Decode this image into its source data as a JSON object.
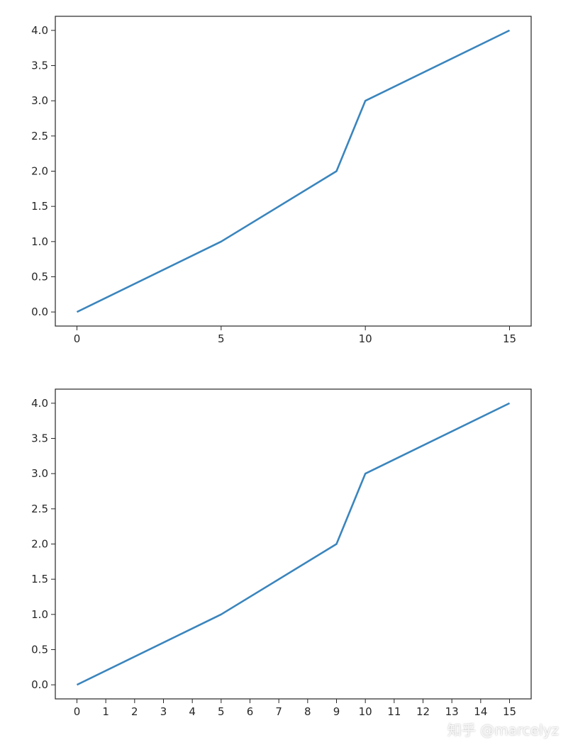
{
  "chart_data": [
    {
      "type": "line",
      "x": [
        0,
        5,
        9,
        10,
        15
      ],
      "series": [
        {
          "values": [
            0,
            1,
            2,
            3,
            4
          ],
          "color": "#3a85bd"
        }
      ],
      "xlim": [
        -0.75,
        15.75
      ],
      "ylim": [
        -0.2,
        4.2
      ],
      "xticks": [
        "0",
        "5",
        "10",
        "15"
      ],
      "xtick_values": [
        0,
        5,
        10,
        15
      ],
      "yticks": [
        "0.0",
        "0.5",
        "1.0",
        "1.5",
        "2.0",
        "2.5",
        "3.0",
        "3.5",
        "4.0"
      ],
      "ytick_values": [
        0,
        0.5,
        1,
        1.5,
        2,
        2.5,
        3,
        3.5,
        4
      ],
      "grid": false,
      "title": "",
      "xlabel": "",
      "ylabel": ""
    },
    {
      "type": "line",
      "x": [
        0,
        5,
        9,
        10,
        15
      ],
      "series": [
        {
          "values": [
            0,
            1,
            2,
            3,
            4
          ],
          "color": "#3a85bd"
        }
      ],
      "xlim": [
        -0.75,
        15.75
      ],
      "ylim": [
        -0.2,
        4.2
      ],
      "xticks": [
        "0",
        "1",
        "2",
        "3",
        "4",
        "5",
        "6",
        "7",
        "8",
        "9",
        "10",
        "11",
        "12",
        "13",
        "14",
        "15"
      ],
      "xtick_values": [
        0,
        1,
        2,
        3,
        4,
        5,
        6,
        7,
        8,
        9,
        10,
        11,
        12,
        13,
        14,
        15
      ],
      "yticks": [
        "0.0",
        "0.5",
        "1.0",
        "1.5",
        "2.0",
        "2.5",
        "3.0",
        "3.5",
        "4.0"
      ],
      "ytick_values": [
        0,
        0.5,
        1,
        1.5,
        2,
        2.5,
        3,
        3.5,
        4
      ],
      "grid": false,
      "title": "",
      "xlabel": "",
      "ylabel": ""
    }
  ],
  "watermark": "知乎 @marcelyz"
}
